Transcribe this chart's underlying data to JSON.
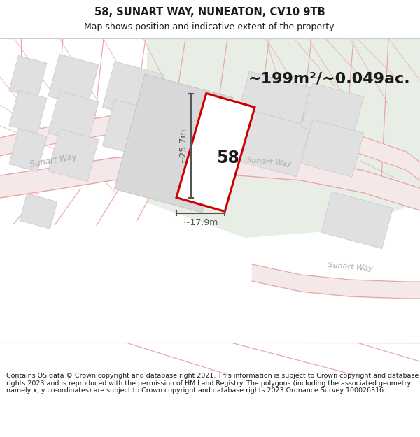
{
  "title": "58, SUNART WAY, NUNEATON, CV10 9TB",
  "subtitle": "Map shows position and indicative extent of the property.",
  "area_text": "~199m²/~0.049ac.",
  "number_label": "58",
  "width_label": "~17.9m",
  "height_label": "~25.7m",
  "footer": "Contains OS data © Crown copyright and database right 2021. This information is subject to Crown copyright and database rights 2023 and is reproduced with the permission of HM Land Registry. The polygons (including the associated geometry, namely x, y co-ordinates) are subject to Crown copyright and database rights 2023 Ordnance Survey 100026316.",
  "bg_color": "#f2f1ee",
  "green_color": "#e8ede5",
  "road_line_color": "#e8a0a0",
  "road_fill_color": "#f5e8e8",
  "block_fill": "#e0e0e0",
  "block_edge": "#cccccc",
  "plot_fill": "#f0eeea",
  "plot_edge": "#cc0000",
  "text_dark": "#1a1a1a",
  "text_road": "#aaaaaa",
  "dim_color": "#555555",
  "footer_color": "#1a1a1a",
  "title_fontsize": 10.5,
  "subtitle_fontsize": 9,
  "area_fontsize": 16,
  "num_fontsize": 17,
  "dim_fontsize": 9,
  "footer_fontsize": 6.8,
  "road_label_fontsize": 8.5
}
